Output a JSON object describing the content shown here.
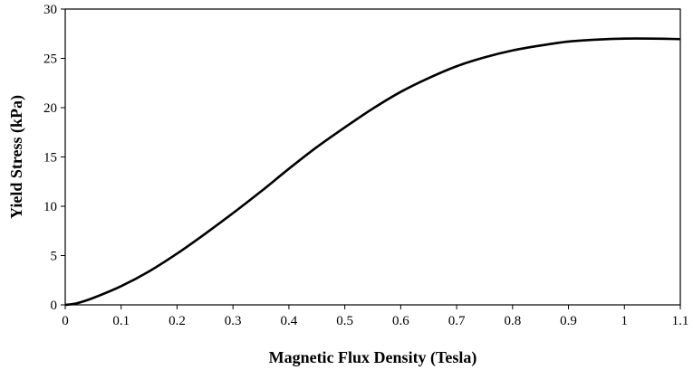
{
  "chart_data": {
    "type": "line",
    "title": "",
    "xlabel": "Magnetic Flux Density (Tesla)",
    "ylabel": "Yield Stress (kPa)",
    "xlim": [
      0,
      1.1
    ],
    "ylim": [
      0,
      30
    ],
    "grid": false,
    "legend": "none",
    "x_ticks": [
      "0",
      "0.1",
      "0.2",
      "0.3",
      "0.4",
      "0.5",
      "0.6",
      "0.7",
      "0.8",
      "0.9",
      "1",
      "1.1"
    ],
    "y_ticks": [
      "0",
      "5",
      "10",
      "15",
      "20",
      "25",
      "30"
    ],
    "series": [
      {
        "color": "#000000",
        "x": [
          0,
          0.02,
          0.05,
          0.1,
          0.15,
          0.2,
          0.25,
          0.3,
          0.35,
          0.4,
          0.45,
          0.5,
          0.55,
          0.6,
          0.65,
          0.7,
          0.75,
          0.8,
          0.85,
          0.9,
          0.95,
          1.0,
          1.05,
          1.1
        ],
        "y": [
          0,
          0.15,
          0.7,
          1.9,
          3.4,
          5.2,
          7.2,
          9.3,
          11.5,
          13.8,
          16.0,
          18.0,
          19.9,
          21.6,
          23.0,
          24.2,
          25.1,
          25.8,
          26.3,
          26.7,
          26.9,
          27.0,
          27.0,
          26.95
        ]
      }
    ]
  }
}
